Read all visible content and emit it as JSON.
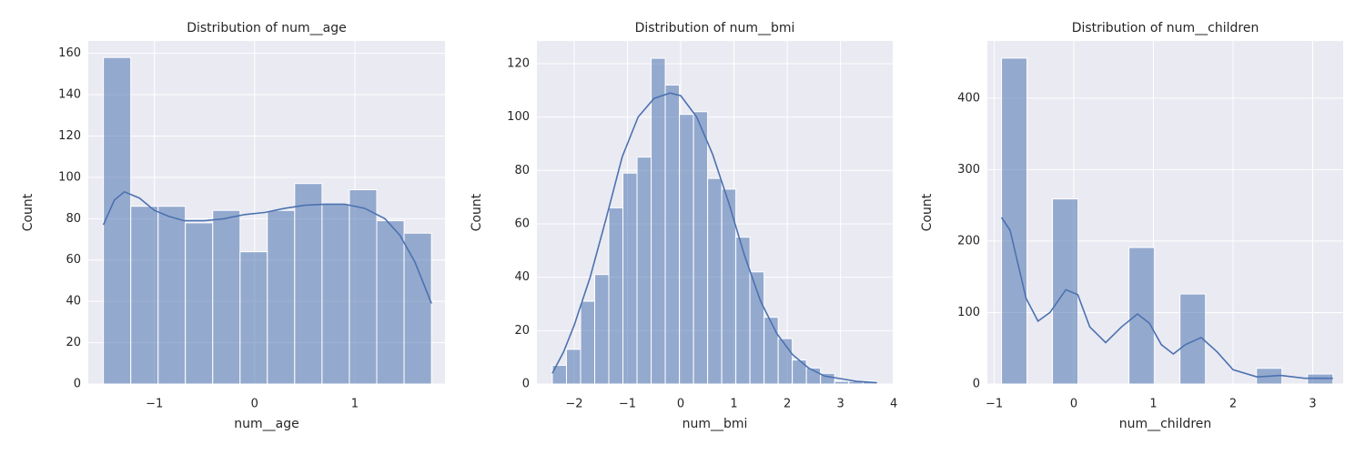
{
  "chart_data": [
    {
      "type": "histogram",
      "title": "Distribution of num__age",
      "x_label": "num__age",
      "y_label": "Count",
      "bins": [
        -1.509,
        -1.236,
        -0.963,
        -0.691,
        -0.418,
        -0.145,
        0.127,
        0.4,
        0.673,
        0.946,
        1.219,
        1.492,
        1.765
      ],
      "values": [
        158,
        86,
        86,
        78,
        84,
        64,
        84,
        97,
        87,
        94,
        79,
        73
      ],
      "kde_x": [
        -1.509,
        -1.4,
        -1.3,
        -1.15,
        -1.0,
        -0.85,
        -0.7,
        -0.5,
        -0.3,
        -0.1,
        0.1,
        0.3,
        0.5,
        0.7,
        0.9,
        1.1,
        1.3,
        1.45,
        1.6,
        1.765
      ],
      "kde_y": [
        77,
        89,
        93,
        90,
        84,
        81,
        79,
        79,
        80,
        82,
        83,
        85,
        86.5,
        87,
        87,
        85,
        80,
        72,
        59,
        39
      ],
      "color": "#4c72b0",
      "grid": true,
      "xlim": [
        -1.66,
        1.9
      ],
      "ylim": [
        0,
        166
      ],
      "xticks": [
        {
          "value": -1,
          "label": "−1"
        },
        0,
        1
      ],
      "yticks": [
        0,
        20,
        40,
        60,
        80,
        100,
        120,
        140,
        160
      ]
    },
    {
      "type": "histogram",
      "title": "Distribution of num__bmi",
      "x_label": "num__bmi",
      "y_label": "Count",
      "bins": [
        -2.41,
        -2.145,
        -1.88,
        -1.615,
        -1.35,
        -1.085,
        -0.82,
        -0.555,
        -0.29,
        -0.025,
        0.24,
        0.505,
        0.77,
        1.035,
        1.3,
        1.565,
        1.83,
        2.095,
        2.36,
        2.625,
        2.89,
        3.155,
        3.42,
        3.685
      ],
      "values": [
        7,
        13,
        31,
        41,
        66,
        79,
        85,
        122,
        112,
        101,
        102,
        77,
        73,
        55,
        42,
        25,
        17,
        9,
        6,
        4,
        1,
        1,
        1
      ],
      "kde_x": [
        -2.41,
        -2.2,
        -2.0,
        -1.7,
        -1.4,
        -1.1,
        -0.8,
        -0.5,
        -0.2,
        0.0,
        0.3,
        0.6,
        0.9,
        1.2,
        1.5,
        1.8,
        2.1,
        2.4,
        2.7,
        3.0,
        3.3,
        3.685
      ],
      "kde_y": [
        4,
        12,
        22,
        40,
        62,
        85,
        100,
        107,
        109,
        108,
        100,
        86,
        68,
        48,
        31,
        19,
        11,
        6,
        3,
        2,
        1,
        0.5
      ],
      "color": "#4c72b0",
      "grid": true,
      "xlim": [
        -2.7,
        3.98
      ],
      "ylim": [
        0,
        128.5
      ],
      "xticks": [
        {
          "value": -2,
          "label": "−2"
        },
        {
          "value": -1,
          "label": "−1"
        },
        0,
        1,
        2,
        3,
        4
      ],
      "yticks": [
        0,
        20,
        40,
        60,
        80,
        100,
        120
      ]
    },
    {
      "type": "histogram",
      "title": "Distribution of num__children",
      "x_label": "num__children",
      "y_label": "Count",
      "bins": [
        -0.908,
        -0.588,
        -0.268,
        0.053,
        0.373,
        0.693,
        1.013,
        1.333,
        1.654,
        1.974,
        2.294,
        2.614,
        2.935,
        3.255
      ],
      "values": [
        456,
        0,
        259,
        0,
        0,
        191,
        0,
        126,
        0,
        0,
        22,
        0,
        14
      ],
      "kde_x": [
        -0.908,
        -0.8,
        -0.6,
        -0.45,
        -0.3,
        -0.1,
        0.05,
        0.2,
        0.4,
        0.6,
        0.8,
        0.95,
        1.1,
        1.25,
        1.4,
        1.6,
        1.8,
        2.0,
        2.3,
        2.6,
        2.9,
        3.255
      ],
      "kde_y": [
        233,
        215,
        120,
        88,
        100,
        132,
        125,
        80,
        58,
        80,
        98,
        85,
        55,
        42,
        55,
        65,
        45,
        20,
        10,
        12,
        8,
        8
      ],
      "color": "#4c72b0",
      "grid": true,
      "xlim": [
        -1.086,
        3.383
      ],
      "ylim": [
        0,
        480
      ],
      "xticks": [
        {
          "value": -1,
          "label": "−1"
        },
        0,
        1,
        2,
        3
      ],
      "yticks": [
        0,
        100,
        200,
        300,
        400
      ]
    }
  ]
}
